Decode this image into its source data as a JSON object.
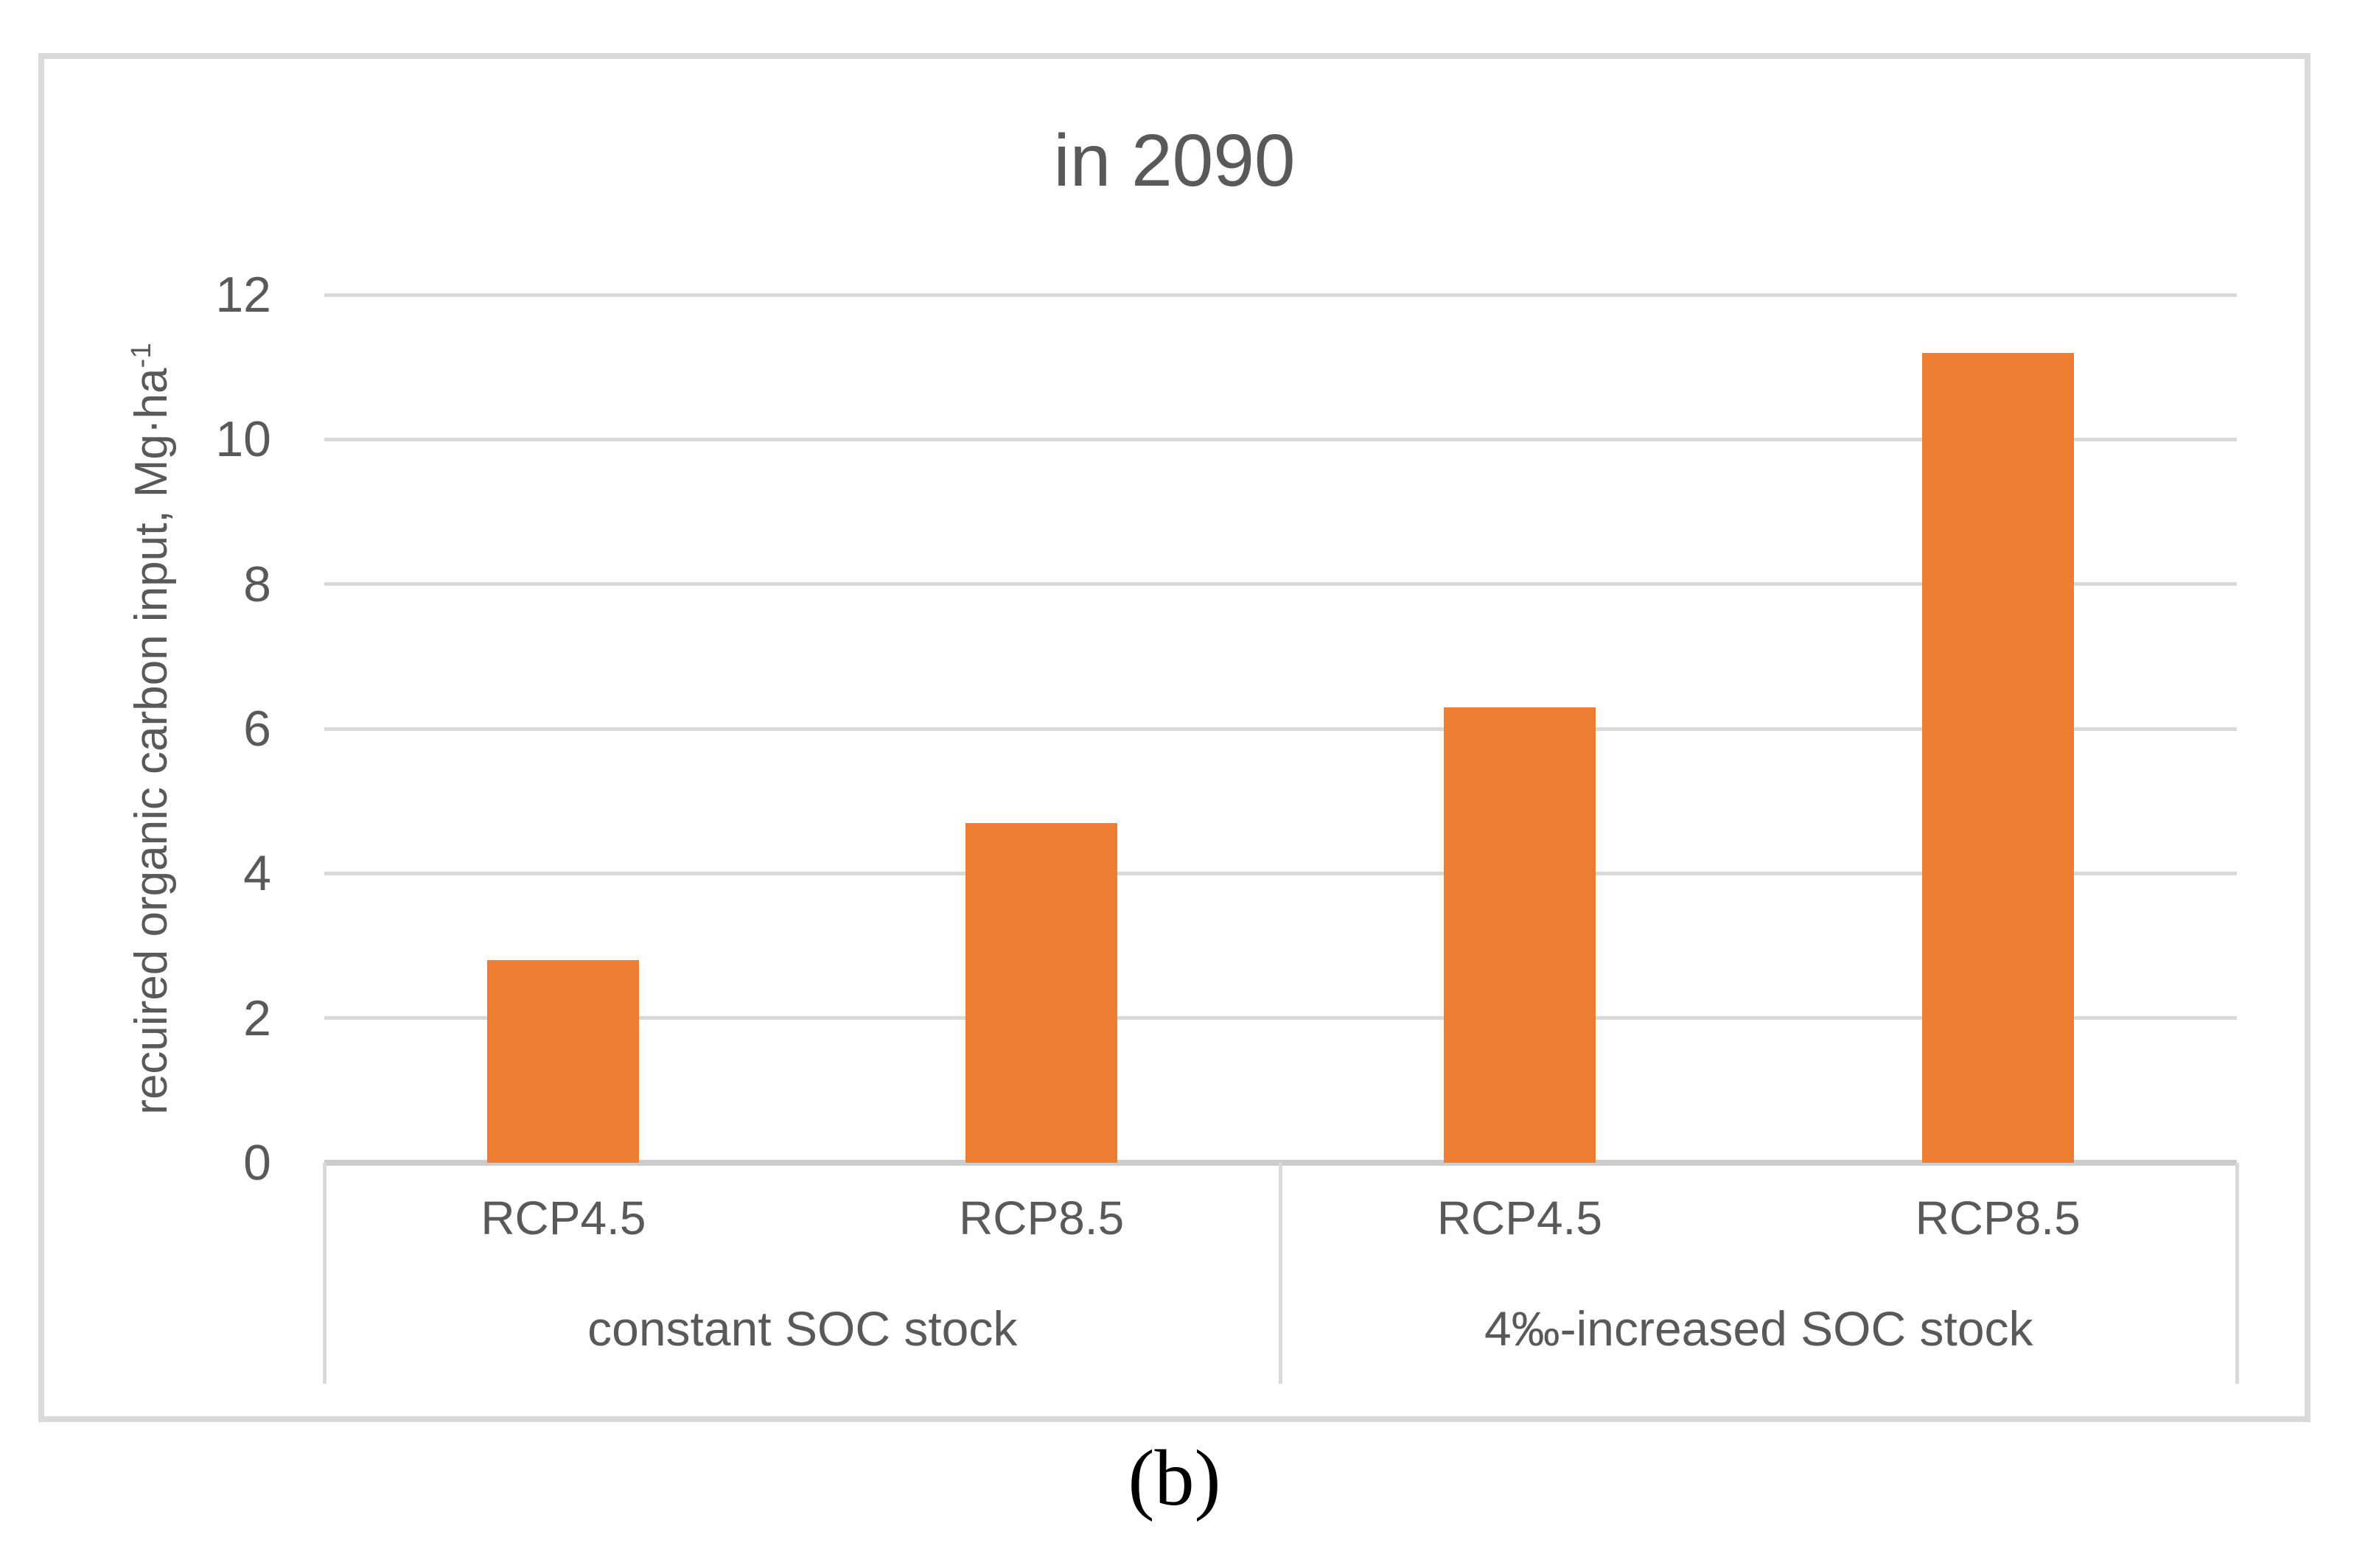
{
  "figure": {
    "caption": "(b)"
  },
  "chart_data": {
    "type": "bar",
    "title": "in 2090",
    "ylabel": "recuired organic carbon input, Mg·ha⁻¹",
    "ylabel_main": "recuired organic carbon input, Mg·ha",
    "ylabel_sup": "-1",
    "xlabel": "",
    "y_axis": {
      "ticks": [
        0,
        2,
        4,
        6,
        8,
        10,
        12
      ],
      "min": 0,
      "max": 12,
      "gridlines": true
    },
    "groups": [
      {
        "label": "constant SOC stock",
        "categories": [
          "RCP4.5",
          "RCP8.5"
        ],
        "values": [
          2.8,
          4.7
        ]
      },
      {
        "label": "4‰-increased SOC stock",
        "categories": [
          "RCP4.5",
          "RCP8.5"
        ],
        "values": [
          6.3,
          11.2
        ]
      }
    ],
    "categories": [
      "RCP4.5",
      "RCP8.5",
      "RCP4.5",
      "RCP8.5"
    ],
    "values": [
      2.8,
      4.7,
      6.3,
      11.2
    ],
    "legend_position": "none"
  },
  "colors": {
    "bar": "#ED7D31",
    "text": "#595959",
    "gridline": "#D9D9D9",
    "axis_line": "#CCCCCC",
    "panel_border": "#D9D9D9",
    "caption": "#000000"
  }
}
